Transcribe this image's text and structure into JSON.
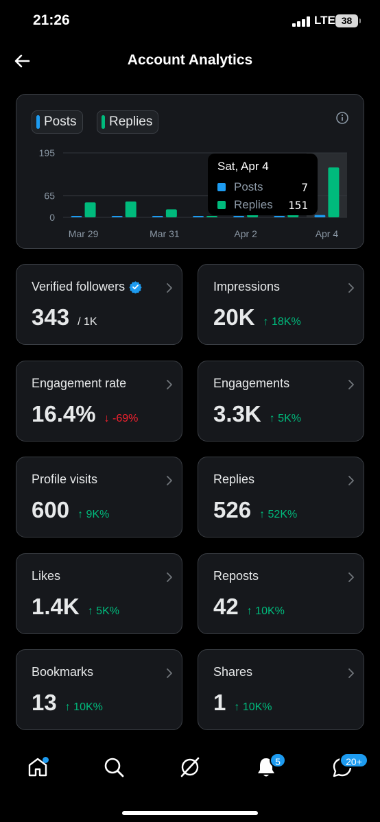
{
  "status_bar": {
    "time": "21:26",
    "network": "LTE",
    "battery": "38"
  },
  "header": {
    "title": "Account Analytics",
    "back_icon": "arrow-left-icon"
  },
  "colors": {
    "posts": "#1d9bf0",
    "replies": "#00ba7c",
    "up": "#00ba7c",
    "down": "#f4212e"
  },
  "legend": {
    "posts_label": "Posts",
    "replies_label": "Replies"
  },
  "chart_data": {
    "type": "bar",
    "x": [
      "Mar 29",
      "Mar 30",
      "Mar 31",
      "Apr 1",
      "Apr 2",
      "Apr 3",
      "Apr 4"
    ],
    "x_tick_labels": [
      "Mar 29",
      "Mar 31",
      "Apr 2",
      "Apr 4"
    ],
    "series": [
      {
        "name": "Posts",
        "values": [
          2,
          2,
          2,
          1,
          3,
          4,
          7
        ]
      },
      {
        "name": "Replies",
        "values": [
          45,
          48,
          24,
          1,
          10,
          20,
          151
        ]
      }
    ],
    "y_ticks": [
      0,
      65,
      195
    ],
    "ylim": [
      0,
      195
    ],
    "grid": true
  },
  "tooltip": {
    "date": "Sat, Apr 4",
    "rows": [
      {
        "name": "Posts",
        "value": "7"
      },
      {
        "name": "Replies",
        "value": "151"
      }
    ]
  },
  "metrics": [
    {
      "label": "Verified followers",
      "value": "343",
      "sub": "/ 1K",
      "verified": true
    },
    {
      "label": "Impressions",
      "value": "20K",
      "change": "18K%",
      "direction": "up"
    },
    {
      "label": "Engagement rate",
      "value": "16.4%",
      "change": "-69%",
      "direction": "down"
    },
    {
      "label": "Engagements",
      "value": "3.3K",
      "change": "5K%",
      "direction": "up"
    },
    {
      "label": "Profile visits",
      "value": "600",
      "change": "9K%",
      "direction": "up"
    },
    {
      "label": "Replies",
      "value": "526",
      "change": "52K%",
      "direction": "up"
    },
    {
      "label": "Likes",
      "value": "1.4K",
      "change": "5K%",
      "direction": "up"
    },
    {
      "label": "Reposts",
      "value": "42",
      "change": "10K%",
      "direction": "up"
    },
    {
      "label": "Bookmarks",
      "value": "13",
      "change": "10K%",
      "direction": "up"
    },
    {
      "label": "Shares",
      "value": "1",
      "change": "10K%",
      "direction": "up"
    }
  ],
  "nav": {
    "items": [
      "home-icon",
      "search-icon",
      "grok-icon",
      "notifications-icon",
      "messages-icon"
    ],
    "notifications_badge": "5",
    "messages_badge": "20+"
  }
}
